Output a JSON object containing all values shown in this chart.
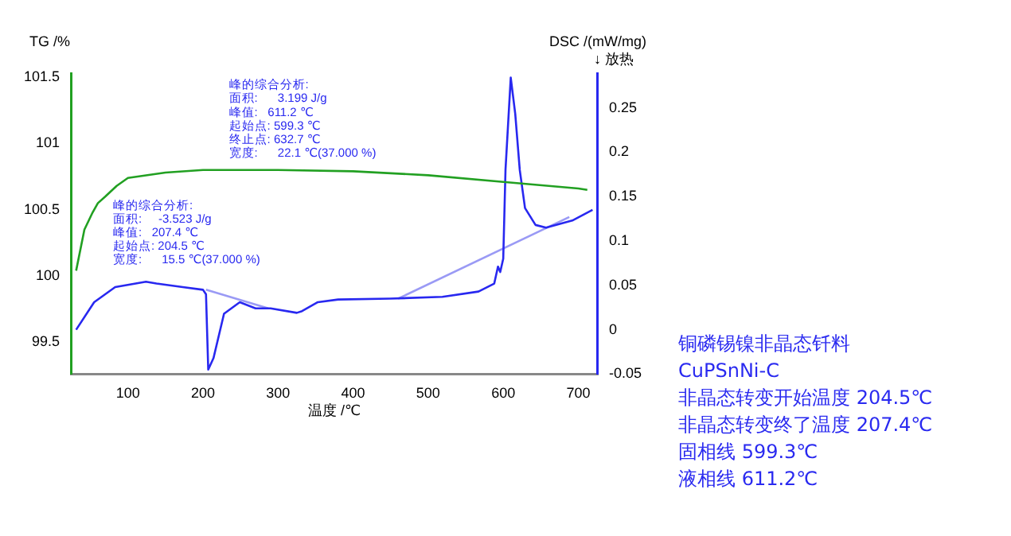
{
  "chart_data": {
    "type": "line",
    "xlabel": "温度 /℃",
    "ylabel": "TG /%",
    "y2label": "DSC /(mW/mg)",
    "xlim": [
      24,
      726
    ],
    "xticks": [
      100,
      200,
      300,
      400,
      500,
      600,
      700
    ],
    "ylim": [
      99.26,
      101.53
    ],
    "yticks": [
      99.5,
      100.0,
      100.5,
      101.0,
      101.5
    ],
    "y2lim": [
      -0.05,
      0.289
    ],
    "y2ticks": [
      -0.05,
      0.0,
      0.05,
      0.1,
      0.15,
      0.2,
      0.25
    ],
    "grid": false,
    "legend": false,
    "marker": "none",
    "line_style": "solid",
    "series": [
      {
        "color": "#22a022",
        "x": [
          31,
          42,
          53,
          60,
          70,
          85,
          100,
          150,
          200,
          300,
          400,
          500,
          600,
          700,
          712
        ],
        "values": [
          100.04,
          100.35,
          100.48,
          100.55,
          100.6,
          100.68,
          100.74,
          100.78,
          100.8,
          100.8,
          100.79,
          100.76,
          100.71,
          100.66,
          100.65
        ]
      },
      {
        "color": "#2828f0",
        "axis": "y2",
        "x": [
          31,
          55,
          83,
          124,
          138,
          173,
          200,
          204,
          207,
          214,
          228,
          249,
          270,
          290,
          325,
          332,
          353,
          380,
          449,
          519,
          567,
          588,
          593,
          596,
          600,
          603,
          610,
          616,
          622,
          629,
          643,
          657,
          692,
          719
        ],
        "values": [
          0.0,
          0.031,
          0.048,
          0.054,
          0.052,
          0.048,
          0.045,
          0.04,
          -0.045,
          -0.032,
          0.018,
          0.031,
          0.024,
          0.024,
          0.019,
          0.021,
          0.031,
          0.034,
          0.035,
          0.037,
          0.043,
          0.052,
          0.071,
          0.065,
          0.08,
          0.18,
          0.284,
          0.243,
          0.18,
          0.137,
          0.118,
          0.115,
          0.123,
          0.135
        ]
      },
      {
        "color": "#9a9af5",
        "axis": "y2",
        "x": [
          204,
          287
        ],
        "values": [
          0.045,
          0.024
        ]
      },
      {
        "color": "#9a9af5",
        "axis": "y2",
        "x": [
          460,
          688
        ],
        "values": [
          0.035,
          0.127
        ]
      }
    ],
    "annotations": [
      "峰的综合分析:\n面积:      3.199 J/g\n峰值:   611.2 ℃\n起始点: 599.3 ℃\n终止点: 632.7 ℃\n宽度:      22.1 ℃(37.000 %)",
      "峰的综合分析:\n面积:     -3.523 J/g\n峰值:   207.4 ℃\n起始点: 204.5 ℃\n宽度:      15.5 ℃(37.000 %)",
      "↓ 放热",
      "铜磷锡镍非晶态钎料",
      "CuPSnNi-C",
      "非晶态转变开始温度 204.5℃",
      "非晶态转变终了温度 207.4℃",
      "固相线 599.3℃",
      "液相线 611.2℃"
    ]
  }
}
